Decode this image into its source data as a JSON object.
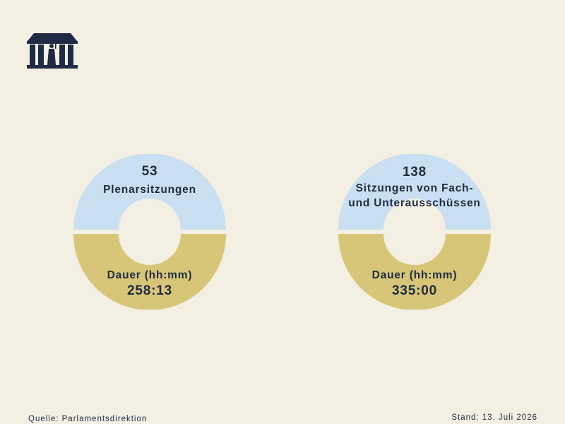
{
  "colors": {
    "background": "#f3efe3",
    "top_half": "#cadff2",
    "bottom_half": "#d8c678",
    "text": "#1f2b44"
  },
  "logo": {
    "icon": "parliament-building-icon"
  },
  "chart_data": [
    {
      "type": "pie",
      "top": {
        "value": 53,
        "label": "Plenarsitzungen"
      },
      "bottom": {
        "label": "Dauer (hh:mm)",
        "value": "258:13"
      }
    },
    {
      "type": "pie",
      "top": {
        "value": 138,
        "label": "Sitzungen von Fach-\nund Unterausschüssen"
      },
      "bottom": {
        "label": "Dauer (hh:mm)",
        "value": "335:00"
      }
    }
  ],
  "footer": {
    "source": "Quelle: Parlamentsdirektion",
    "date": "Stand: 13. Juli 2026"
  }
}
